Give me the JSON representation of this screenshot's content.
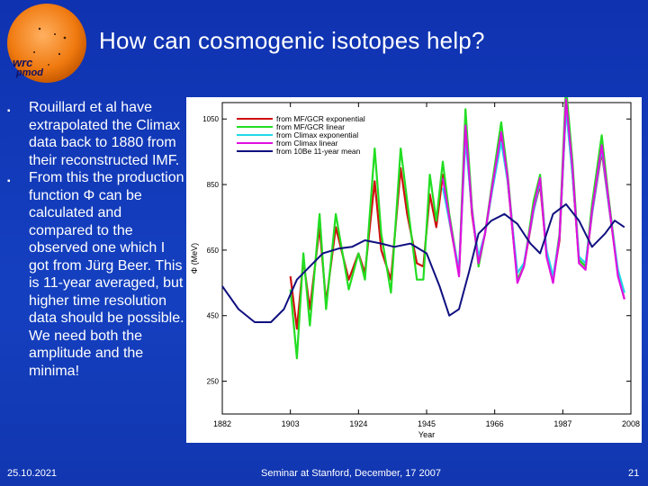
{
  "slide": {
    "title": "How can cosmogenic isotopes help?",
    "logo_text_1": "wrc",
    "logo_text_2": "pmod",
    "bullets": [
      "Rouillard et al have extrapolated the Climax data back to 1880 from their reconstructed IMF.",
      "From this the production function Φ can be calculated and compared to the observed one which I got from Jürg Beer. This is 11-year averaged, but higher time resolution data should be possible. We need both the amplitude and the minima!"
    ],
    "footer": {
      "date": "25.10.2021",
      "event": "Seminar at Stanford, December, 17 2007",
      "page": "21"
    }
  },
  "chart_data": {
    "type": "line",
    "xlabel": "Year",
    "ylabel": "Φ (MeV)",
    "xlim": [
      1882,
      2008
    ],
    "ylim": [
      150,
      1100
    ],
    "x_ticks": [
      "1882",
      "1903",
      "1924",
      "1945",
      "1966",
      "1987",
      "2008"
    ],
    "y_ticks": [
      "250",
      "450",
      "650",
      "850",
      "1050"
    ],
    "legend": [
      {
        "label": "from  MF/GCR exponential",
        "color": "#d01010"
      },
      {
        "label": "from  MF/GCR linear",
        "color": "#22dd22"
      },
      {
        "label": "from  Climax exponential",
        "color": "#20d8e8"
      },
      {
        "label": "from  Climax linear",
        "color": "#e010e0"
      },
      {
        "label": "from  10Be 11-year mean",
        "color": "#101080"
      }
    ],
    "series": [
      {
        "name": "MF/GCR exponential",
        "color": "#d01010",
        "points": [
          [
            1903,
            570
          ],
          [
            1905,
            410
          ],
          [
            1907,
            620
          ],
          [
            1909,
            470
          ],
          [
            1912,
            720
          ],
          [
            1914,
            490
          ],
          [
            1917,
            720
          ],
          [
            1921,
            560
          ],
          [
            1924,
            640
          ],
          [
            1926,
            580
          ],
          [
            1929,
            860
          ],
          [
            1931,
            650
          ],
          [
            1934,
            560
          ],
          [
            1937,
            900
          ],
          [
            1939,
            760
          ],
          [
            1942,
            610
          ],
          [
            1944,
            600
          ],
          [
            1946,
            820
          ],
          [
            1948,
            720
          ],
          [
            1950,
            880
          ],
          [
            1952,
            740
          ],
          [
            1955,
            580
          ],
          [
            1957,
            1020
          ],
          [
            1959,
            760
          ],
          [
            1961,
            620
          ],
          [
            1963,
            700
          ],
          [
            1965,
            820
          ],
          [
            1968,
            990
          ],
          [
            1970,
            860
          ],
          [
            1973,
            560
          ],
          [
            1975,
            600
          ],
          [
            1978,
            770
          ],
          [
            1980,
            850
          ],
          [
            1982,
            640
          ],
          [
            1984,
            560
          ],
          [
            1986,
            680
          ],
          [
            1988,
            1090
          ],
          [
            1990,
            880
          ],
          [
            1992,
            620
          ],
          [
            1994,
            600
          ],
          [
            1996,
            760
          ],
          [
            1999,
            950
          ],
          [
            2001,
            800
          ],
          [
            2004,
            580
          ],
          [
            2006,
            500
          ]
        ]
      },
      {
        "name": "MF/GCR linear",
        "color": "#22dd22",
        "points": [
          [
            1903,
            530
          ],
          [
            1905,
            320
          ],
          [
            1907,
            640
          ],
          [
            1909,
            420
          ],
          [
            1912,
            760
          ],
          [
            1914,
            470
          ],
          [
            1917,
            760
          ],
          [
            1921,
            530
          ],
          [
            1924,
            640
          ],
          [
            1926,
            560
          ],
          [
            1929,
            960
          ],
          [
            1931,
            700
          ],
          [
            1934,
            520
          ],
          [
            1937,
            960
          ],
          [
            1939,
            800
          ],
          [
            1942,
            560
          ],
          [
            1944,
            560
          ],
          [
            1946,
            880
          ],
          [
            1948,
            740
          ],
          [
            1950,
            920
          ],
          [
            1952,
            760
          ],
          [
            1955,
            580
          ],
          [
            1957,
            1080
          ],
          [
            1959,
            780
          ],
          [
            1961,
            600
          ],
          [
            1963,
            700
          ],
          [
            1965,
            840
          ],
          [
            1968,
            1040
          ],
          [
            1970,
            880
          ],
          [
            1973,
            560
          ],
          [
            1975,
            600
          ],
          [
            1978,
            800
          ],
          [
            1980,
            880
          ],
          [
            1982,
            640
          ],
          [
            1984,
            560
          ],
          [
            1986,
            700
          ],
          [
            1988,
            1150
          ],
          [
            1990,
            920
          ],
          [
            1992,
            620
          ],
          [
            1994,
            600
          ],
          [
            1996,
            790
          ],
          [
            1999,
            1000
          ],
          [
            2001,
            820
          ],
          [
            2004,
            580
          ],
          [
            2006,
            520
          ]
        ]
      },
      {
        "name": "Climax exponential",
        "color": "#20d8e8",
        "points": [
          [
            1950,
            840
          ],
          [
            1952,
            740
          ],
          [
            1955,
            590
          ],
          [
            1957,
            990
          ],
          [
            1959,
            770
          ],
          [
            1961,
            630
          ],
          [
            1963,
            700
          ],
          [
            1965,
            820
          ],
          [
            1968,
            980
          ],
          [
            1970,
            860
          ],
          [
            1973,
            580
          ],
          [
            1975,
            610
          ],
          [
            1978,
            770
          ],
          [
            1980,
            860
          ],
          [
            1982,
            650
          ],
          [
            1984,
            570
          ],
          [
            1986,
            690
          ],
          [
            1988,
            1080
          ],
          [
            1990,
            880
          ],
          [
            1992,
            630
          ],
          [
            1994,
            610
          ],
          [
            1996,
            760
          ],
          [
            1999,
            960
          ],
          [
            2001,
            800
          ],
          [
            2004,
            590
          ],
          [
            2006,
            520
          ]
        ]
      },
      {
        "name": "Climax linear",
        "color": "#e010e0",
        "points": [
          [
            1950,
            870
          ],
          [
            1952,
            750
          ],
          [
            1955,
            570
          ],
          [
            1957,
            1030
          ],
          [
            1959,
            770
          ],
          [
            1961,
            610
          ],
          [
            1963,
            700
          ],
          [
            1965,
            830
          ],
          [
            1968,
            1010
          ],
          [
            1970,
            870
          ],
          [
            1973,
            550
          ],
          [
            1975,
            600
          ],
          [
            1978,
            780
          ],
          [
            1980,
            870
          ],
          [
            1982,
            630
          ],
          [
            1984,
            550
          ],
          [
            1986,
            690
          ],
          [
            1988,
            1110
          ],
          [
            1990,
            900
          ],
          [
            1992,
            610
          ],
          [
            1994,
            590
          ],
          [
            1996,
            770
          ],
          [
            1999,
            970
          ],
          [
            2001,
            810
          ],
          [
            2004,
            570
          ],
          [
            2006,
            500
          ]
        ]
      },
      {
        "name": "10Be 11-year mean",
        "color": "#101080",
        "points": [
          [
            1882,
            540
          ],
          [
            1887,
            470
          ],
          [
            1892,
            430
          ],
          [
            1897,
            430
          ],
          [
            1901,
            470
          ],
          [
            1905,
            560
          ],
          [
            1909,
            600
          ],
          [
            1913,
            640
          ],
          [
            1918,
            655
          ],
          [
            1922,
            660
          ],
          [
            1926,
            680
          ],
          [
            1931,
            670
          ],
          [
            1935,
            660
          ],
          [
            1940,
            670
          ],
          [
            1945,
            640
          ],
          [
            1949,
            540
          ],
          [
            1952,
            450
          ],
          [
            1955,
            470
          ],
          [
            1958,
            580
          ],
          [
            1961,
            700
          ],
          [
            1965,
            740
          ],
          [
            1969,
            760
          ],
          [
            1973,
            730
          ],
          [
            1977,
            670
          ],
          [
            1980,
            640
          ],
          [
            1984,
            760
          ],
          [
            1988,
            790
          ],
          [
            1992,
            740
          ],
          [
            1996,
            660
          ],
          [
            2000,
            700
          ],
          [
            2003,
            740
          ],
          [
            2006,
            720
          ]
        ]
      }
    ]
  }
}
